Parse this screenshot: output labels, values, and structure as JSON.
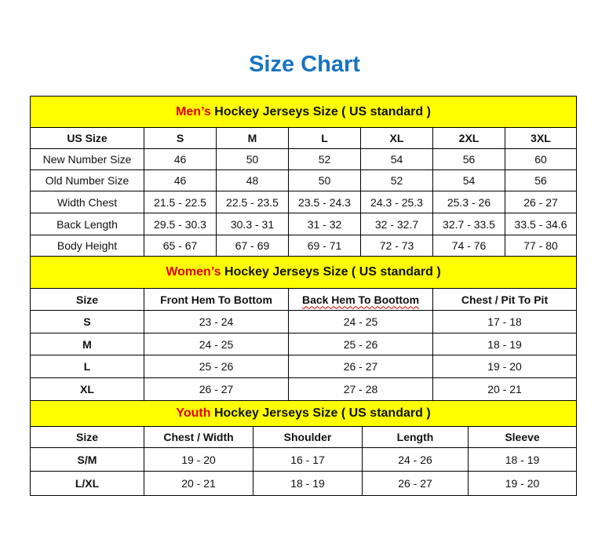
{
  "title": "Size Chart",
  "colors": {
    "title": "#1874c1",
    "band": "#ffff00",
    "highlight": "#e00000"
  },
  "men": {
    "highlight": "Men’s",
    "heading": " Hockey Jerseys Size ( US standard )",
    "columns": [
      "US Size",
      "S",
      "M",
      "L",
      "XL",
      "2XL",
      "3XL"
    ],
    "rows": [
      [
        "New Number Size",
        "46",
        "50",
        "52",
        "54",
        "56",
        "60"
      ],
      [
        "Old Number Size",
        "46",
        "48",
        "50",
        "52",
        "54",
        "56"
      ],
      [
        "Width Chest",
        "21.5 - 22.5",
        "22.5 - 23.5",
        "23.5 - 24.3",
        "24.3 - 25.3",
        "25.3 - 26",
        "26 - 27"
      ],
      [
        "Back Length",
        "29.5 - 30.3",
        "30.3 - 31",
        "31 - 32",
        "32 - 32.7",
        "32.7 - 33.5",
        "33.5 - 34.6"
      ],
      [
        "Body Height",
        "65 - 67",
        "67 - 69",
        "69 - 71",
        "72 - 73",
        "74 - 76",
        "77 - 80"
      ]
    ]
  },
  "women": {
    "highlight": "Women’s",
    "heading": " Hockey Jerseys Size ( US standard )",
    "columns": [
      "Size",
      "Front Hem To Bottom",
      "Back Hem To Boottom",
      "Chest / Pit To Pit"
    ],
    "rows": [
      [
        "S",
        "23 - 24",
        "24 - 25",
        "17 - 18"
      ],
      [
        "M",
        "24 - 25",
        "25 - 26",
        "18 - 19"
      ],
      [
        "L",
        "25 - 26",
        "26 - 27",
        "19 - 20"
      ],
      [
        "XL",
        "26 - 27",
        "27 - 28",
        "20 - 21"
      ]
    ]
  },
  "youth": {
    "highlight": "Youth",
    "heading": " Hockey Jerseys Size ( US standard )",
    "columns": [
      "Size",
      "Chest / Width",
      "Shoulder",
      "Length",
      "Sleeve"
    ],
    "rows": [
      [
        "S/M",
        "19 - 20",
        "16 - 17",
        "24 - 26",
        "18 - 19"
      ],
      [
        "L/XL",
        "20 - 21",
        "18 - 19",
        "26 - 27",
        "19 - 20"
      ]
    ]
  }
}
